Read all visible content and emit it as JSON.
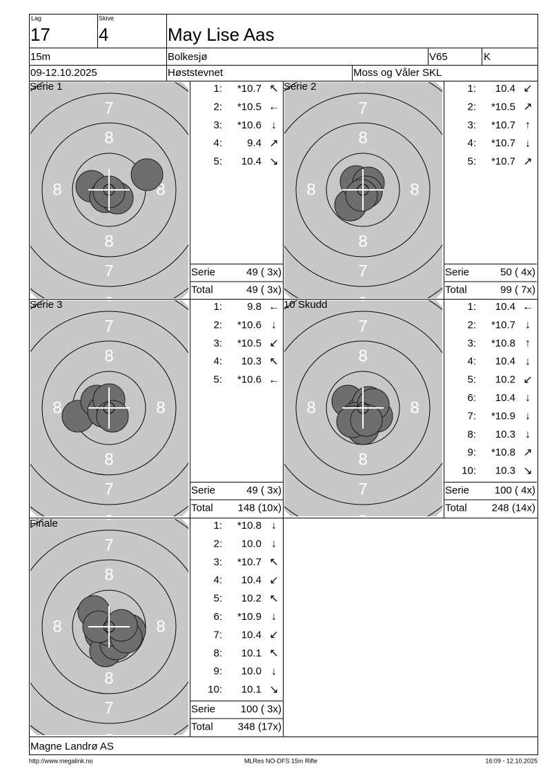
{
  "header": {
    "lag_label": "Lag",
    "lag": "17",
    "skive_label": "Skive",
    "skive": "4",
    "name": "May Lise Aas",
    "distance": "15m",
    "place": "Bolkesjø",
    "class": "V65",
    "gender": "K",
    "date": "09-12.10.2025",
    "event": "Høststevnet",
    "club": "Moss og Våler SKL"
  },
  "target": {
    "ring7": "7",
    "ring8": "8"
  },
  "panels": [
    {
      "title": "Serie 1",
      "shots": [
        {
          "n": "1:",
          "value": "*10.7",
          "dir": "↖"
        },
        {
          "n": "2:",
          "value": "*10.5",
          "dir": "←"
        },
        {
          "n": "3:",
          "value": "*10.6",
          "dir": "↓"
        },
        {
          "n": "4:",
          "value": "9.4",
          "dir": "↗"
        },
        {
          "n": "5:",
          "value": "10.4",
          "dir": "↘"
        }
      ],
      "summary": [
        {
          "label": "Serie",
          "value": "49 ( 3x)"
        },
        {
          "label": "Total",
          "value": "49 ( 3x)"
        }
      ]
    },
    {
      "title": "Serie 2",
      "shots": [
        {
          "n": "1:",
          "value": "10.4",
          "dir": "↙"
        },
        {
          "n": "2:",
          "value": "*10.5",
          "dir": "↗"
        },
        {
          "n": "3:",
          "value": "*10.7",
          "dir": "↑"
        },
        {
          "n": "4:",
          "value": "*10.7",
          "dir": "↓"
        },
        {
          "n": "5:",
          "value": "*10.7",
          "dir": "↗"
        }
      ],
      "summary": [
        {
          "label": "Serie",
          "value": "50 ( 4x)"
        },
        {
          "label": "Total",
          "value": "99 ( 7x)"
        }
      ]
    },
    {
      "title": "Serie 3",
      "shots": [
        {
          "n": "1:",
          "value": "9.8",
          "dir": "←"
        },
        {
          "n": "2:",
          "value": "*10.6",
          "dir": "↓"
        },
        {
          "n": "3:",
          "value": "*10.5",
          "dir": "↙"
        },
        {
          "n": "4:",
          "value": "10.3",
          "dir": "↖"
        },
        {
          "n": "5:",
          "value": "*10.6",
          "dir": "←"
        }
      ],
      "summary": [
        {
          "label": "Serie",
          "value": "49 ( 3x)"
        },
        {
          "label": "Total",
          "value": "148 (10x)"
        }
      ]
    },
    {
      "title": "10 Skudd",
      "shots": [
        {
          "n": "1:",
          "value": "10.4",
          "dir": "←"
        },
        {
          "n": "2:",
          "value": "*10.7",
          "dir": "↓"
        },
        {
          "n": "3:",
          "value": "*10.8",
          "dir": "↑"
        },
        {
          "n": "4:",
          "value": "10.4",
          "dir": "↓"
        },
        {
          "n": "5:",
          "value": "10.2",
          "dir": "↙"
        },
        {
          "n": "6:",
          "value": "10.4",
          "dir": "↓"
        },
        {
          "n": "7:",
          "value": "*10.9",
          "dir": "↓"
        },
        {
          "n": "8:",
          "value": "10.3",
          "dir": "↓"
        },
        {
          "n": "9:",
          "value": "*10.8",
          "dir": "↗"
        },
        {
          "n": "10:",
          "value": "10.3",
          "dir": "↘"
        }
      ],
      "summary": [
        {
          "label": "Serie",
          "value": "100 ( 4x)"
        },
        {
          "label": "Total",
          "value": "248 (14x)"
        }
      ]
    },
    {
      "title": "Finale",
      "shots": [
        {
          "n": "1:",
          "value": "*10.8",
          "dir": "↓"
        },
        {
          "n": "2:",
          "value": "10.0",
          "dir": "↓"
        },
        {
          "n": "3:",
          "value": "*10.7",
          "dir": "↖"
        },
        {
          "n": "4:",
          "value": "10.4",
          "dir": "↙"
        },
        {
          "n": "5:",
          "value": "10.2",
          "dir": "↖"
        },
        {
          "n": "6:",
          "value": "*10.9",
          "dir": "↓"
        },
        {
          "n": "7:",
          "value": "10.4",
          "dir": "↙"
        },
        {
          "n": "8:",
          "value": "10.1",
          "dir": "↖"
        },
        {
          "n": "9:",
          "value": "10.0",
          "dir": "↓"
        },
        {
          "n": "10:",
          "value": "10.1",
          "dir": "↘"
        }
      ],
      "summary": [
        {
          "label": "Serie",
          "value": "100 ( 3x)"
        },
        {
          "label": "Total",
          "value": "348 (17x)"
        }
      ]
    }
  ],
  "footer": {
    "company": "Magne Landrø AS",
    "url": "http://www.megalink.no",
    "software": "MLRes NO-DFS 15m Rifle",
    "timestamp": "16:09 - 12.10.2025"
  }
}
